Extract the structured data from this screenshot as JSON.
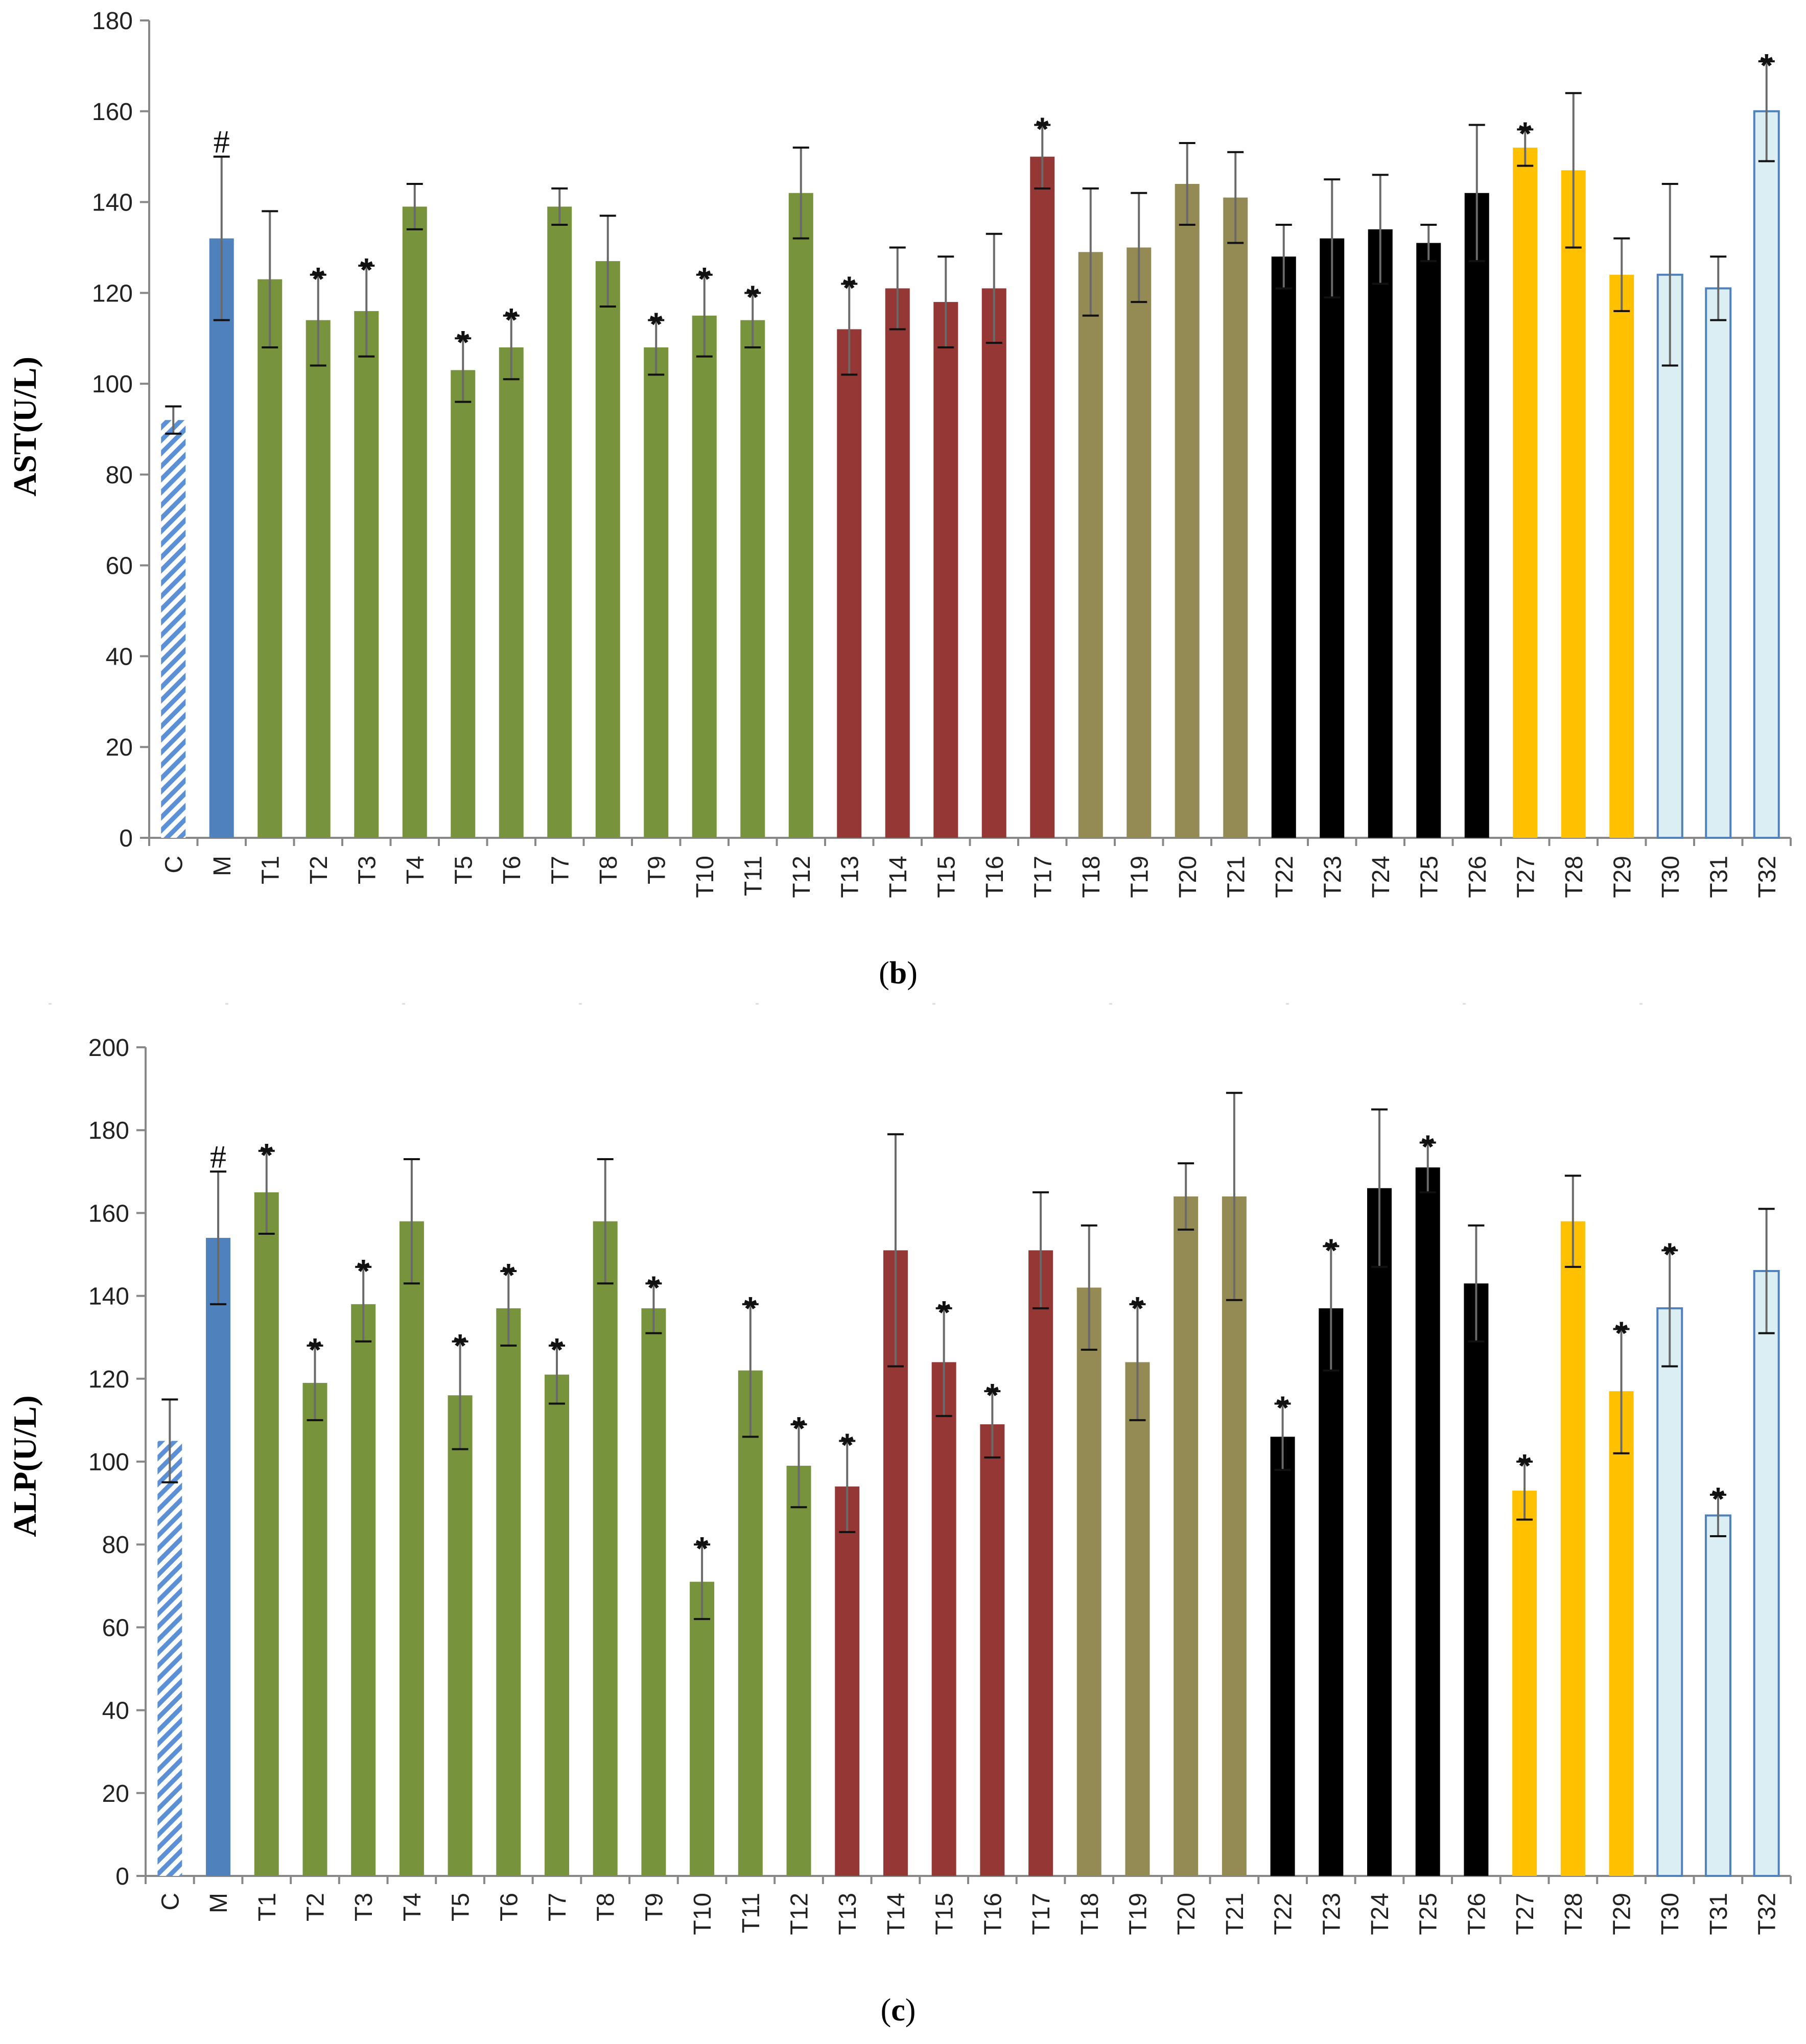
{
  "colors": {
    "control_stripe": "#5b8fd6",
    "model": "#4f81bd",
    "green": "#77933c",
    "red": "#953735",
    "olive": "#948a54",
    "black": "#000000",
    "gold": "#ffc000",
    "lightblue_fill": "#dbeef4",
    "lightblue_edge": "#4f81bd",
    "axis": "#888888"
  },
  "chart_data": [
    {
      "type": "bar",
      "panel_label": "b",
      "ylabel": "AST(U/L)",
      "xlabel": "",
      "ylim": [
        0,
        180
      ],
      "yticks": [
        0,
        20,
        40,
        60,
        80,
        100,
        120,
        140,
        160,
        180
      ],
      "categories": [
        "C",
        "M",
        "T1",
        "T2",
        "T3",
        "T4",
        "T5",
        "T6",
        "T7",
        "T8",
        "T9",
        "T10",
        "T11",
        "T12",
        "T13",
        "T14",
        "T15",
        "T16",
        "T17",
        "T18",
        "T19",
        "T20",
        "T21",
        "T22",
        "T23",
        "T24",
        "T25",
        "T26",
        "T27",
        "T28",
        "T29",
        "T30",
        "T31",
        "T32"
      ],
      "values": [
        92,
        132,
        123,
        114,
        116,
        139,
        103,
        108,
        139,
        127,
        108,
        115,
        114,
        142,
        112,
        121,
        118,
        121,
        150,
        129,
        130,
        144,
        141,
        128,
        132,
        134,
        131,
        142,
        152,
        147,
        124,
        124,
        121,
        160
      ],
      "errors": [
        3,
        18,
        15,
        10,
        10,
        5,
        7,
        7,
        4,
        10,
        6,
        9,
        6,
        10,
        10,
        9,
        10,
        12,
        7,
        14,
        12,
        9,
        10,
        7,
        13,
        12,
        4,
        15,
        4,
        17,
        8,
        20,
        7,
        11
      ],
      "markers": [
        "",
        "#",
        "",
        "*",
        "*",
        "",
        "*",
        "*",
        "",
        "",
        "*",
        "*",
        "*",
        "",
        "*",
        "",
        "",
        "",
        "*",
        "",
        "",
        "",
        "",
        "",
        "",
        "",
        "",
        "",
        "*",
        "",
        "",
        "",
        "",
        "*"
      ]
    },
    {
      "type": "bar",
      "panel_label": "c",
      "ylabel": "ALP(U/L)",
      "xlabel": "",
      "ylim": [
        0,
        200
      ],
      "yticks": [
        0,
        20,
        40,
        60,
        80,
        100,
        120,
        140,
        160,
        180,
        200
      ],
      "categories": [
        "C",
        "M",
        "T1",
        "T2",
        "T3",
        "T4",
        "T5",
        "T6",
        "T7",
        "T8",
        "T9",
        "T10",
        "T11",
        "T12",
        "T13",
        "T14",
        "T15",
        "T16",
        "T17",
        "T18",
        "T19",
        "T20",
        "T21",
        "T22",
        "T23",
        "T24",
        "T25",
        "T26",
        "T27",
        "T28",
        "T29",
        "T30",
        "T31",
        "T32"
      ],
      "values": [
        105,
        154,
        165,
        119,
        138,
        158,
        116,
        137,
        121,
        158,
        137,
        71,
        122,
        99,
        94,
        151,
        124,
        109,
        151,
        142,
        124,
        164,
        164,
        106,
        137,
        166,
        171,
        143,
        93,
        158,
        117,
        137,
        87,
        146
      ],
      "errors": [
        10,
        16,
        10,
        9,
        9,
        15,
        13,
        9,
        7,
        15,
        6,
        9,
        16,
        10,
        11,
        28,
        13,
        8,
        14,
        15,
        14,
        8,
        25,
        8,
        15,
        19,
        6,
        14,
        7,
        11,
        15,
        14,
        5,
        15
      ],
      "markers": [
        "",
        "#",
        "*",
        "*",
        "*",
        "",
        "*",
        "*",
        "*",
        "",
        "*",
        "*",
        "*",
        "*",
        "*",
        "",
        "*",
        "*",
        "",
        "",
        "*",
        "",
        "",
        "*",
        "*",
        "",
        "*",
        "",
        "*",
        "",
        "*",
        "*",
        "*",
        ""
      ]
    }
  ]
}
